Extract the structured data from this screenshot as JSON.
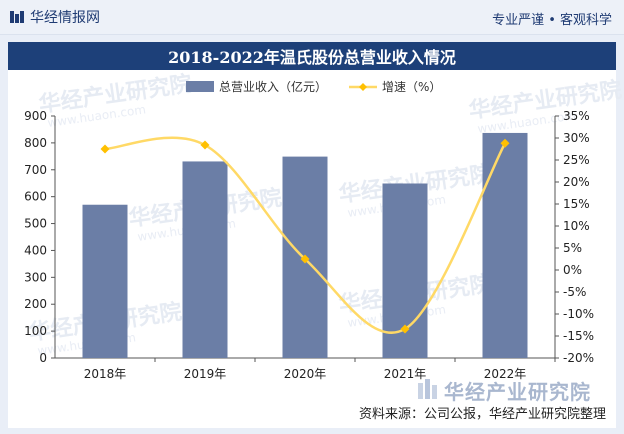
{
  "header": {
    "brand_name": "华经情报网",
    "slogan": "专业严谨 • 客观科学"
  },
  "source_note": "资料来源：公司公报，华经产业研究院整理",
  "watermark": {
    "text": "华经产业研究院",
    "subtext": "www.huaon.com",
    "badge_text": "华经产业研究院"
  },
  "colors": {
    "bar": "#6b7ea6",
    "line": "#ffd966",
    "title_bg": "#1d4079",
    "marker": "#ffc000"
  },
  "chart_data": {
    "type": "bar+line",
    "title": "2018-2022年温氏股份总营业收入情况",
    "categories": [
      "2018年",
      "2019年",
      "2020年",
      "2021年",
      "2022年"
    ],
    "series": [
      {
        "name": "总营业收入（亿元）",
        "type": "bar",
        "axis": "left",
        "values": [
          570,
          731,
          749,
          649,
          837
        ]
      },
      {
        "name": "增速（%）",
        "type": "line",
        "axis": "right",
        "values": [
          27.5,
          28.4,
          2.5,
          -13.4,
          28.8
        ]
      }
    ],
    "y_left": {
      "min": 0,
      "max": 900,
      "step": 100,
      "ticks": [
        "0",
        "100",
        "200",
        "300",
        "400",
        "500",
        "600",
        "700",
        "800",
        "900"
      ]
    },
    "y_right": {
      "min": -20,
      "max": 35,
      "step": 5,
      "ticks": [
        "-20%",
        "-15%",
        "-10%",
        "-5%",
        "0%",
        "5%",
        "10%",
        "15%",
        "20%",
        "25%",
        "30%",
        "35%"
      ]
    },
    "legend_position": "top-center",
    "grid": false
  }
}
